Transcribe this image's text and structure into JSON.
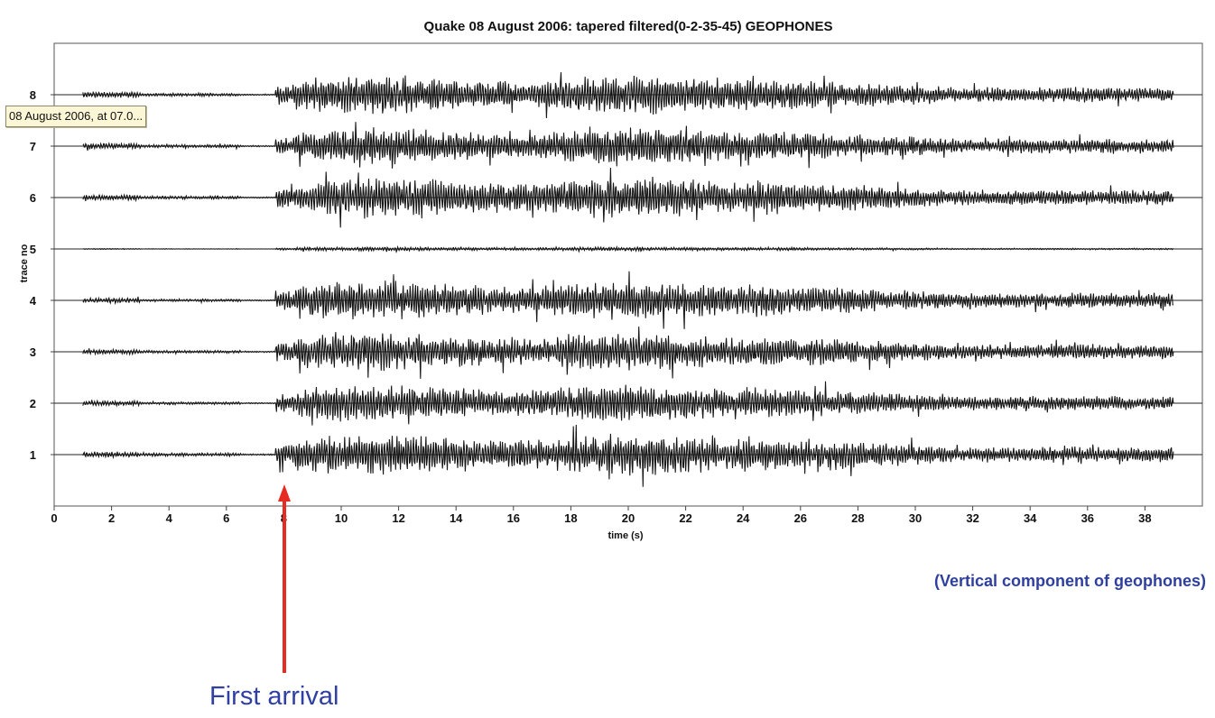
{
  "tooltip": {
    "text": "08 August 2006, at 07.0..."
  },
  "caption": "(Vertical component of geophones)",
  "annotation": {
    "text": "First arrival",
    "color": "#e52b22",
    "text_color": "#2f3fa2"
  },
  "chart_data": {
    "type": "line",
    "title": "Quake 08 August 2006: tapered filtered(0-2-35-45) GEOPHONES",
    "xlabel": "time (s)",
    "ylabel": "trace no",
    "xlim": [
      0,
      40
    ],
    "ylim": [
      0,
      9
    ],
    "x_ticks": [
      0,
      2,
      4,
      6,
      8,
      10,
      12,
      14,
      16,
      18,
      20,
      22,
      24,
      26,
      28,
      30,
      32,
      34,
      36,
      38
    ],
    "y_ticks": [
      1,
      2,
      3,
      4,
      5,
      6,
      7,
      8
    ],
    "first_arrival_time": 8,
    "grid": false,
    "series": [
      {
        "trace": 1,
        "start": 1,
        "end": 39,
        "onset": 8,
        "pre_amp": 0.06,
        "amp": 0.42
      },
      {
        "trace": 2,
        "start": 1,
        "end": 39,
        "onset": 8,
        "pre_amp": 0.05,
        "amp": 0.38
      },
      {
        "trace": 3,
        "start": 1,
        "end": 39,
        "onset": 8,
        "pre_amp": 0.05,
        "amp": 0.38
      },
      {
        "trace": 4,
        "start": 1,
        "end": 39,
        "onset": 8,
        "pre_amp": 0.05,
        "amp": 0.4
      },
      {
        "trace": 5,
        "start": 1,
        "end": 39,
        "onset": 8,
        "pre_amp": 0.01,
        "amp": 0.04
      },
      {
        "trace": 6,
        "start": 1,
        "end": 39,
        "onset": 8,
        "pre_amp": 0.06,
        "amp": 0.42
      },
      {
        "trace": 7,
        "start": 1,
        "end": 39,
        "onset": 8,
        "pre_amp": 0.06,
        "amp": 0.38
      },
      {
        "trace": 8,
        "start": 1,
        "end": 39,
        "onset": 8,
        "pre_amp": 0.06,
        "amp": 0.4
      }
    ]
  }
}
